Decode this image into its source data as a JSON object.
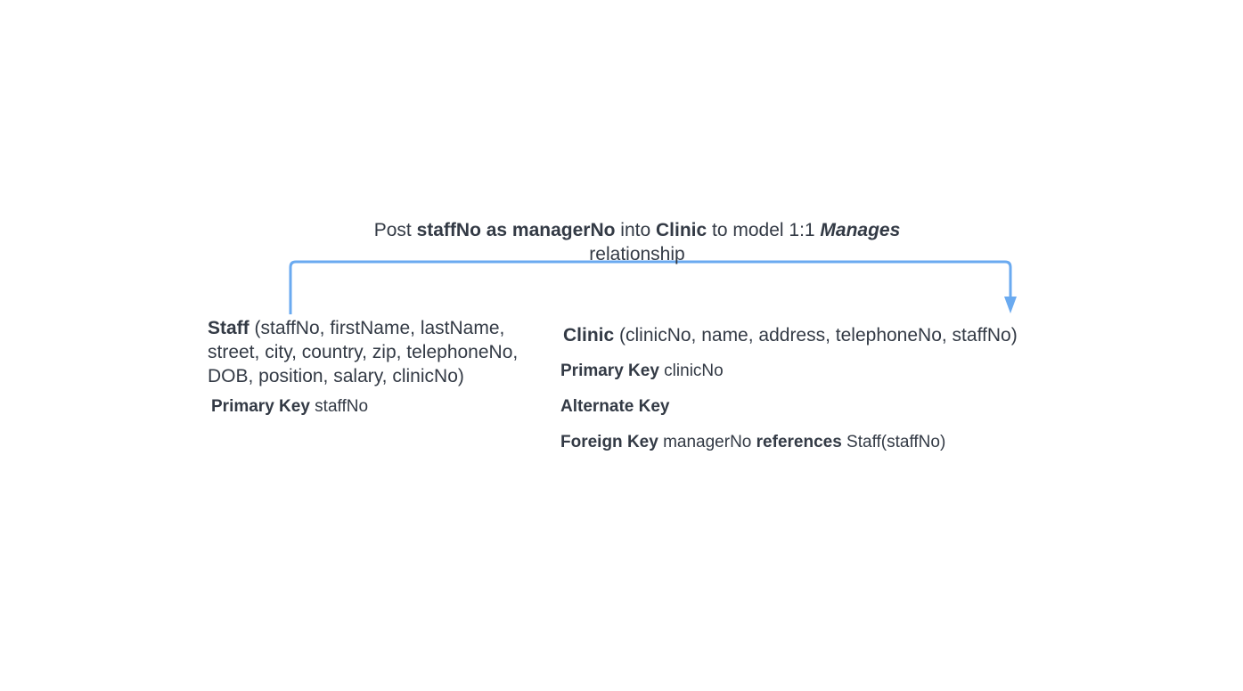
{
  "caption": {
    "part1": "Post ",
    "bold1": "staffNo as managerNo",
    "part2": " into ",
    "bold2": "Clinic",
    "part3": " to model 1:1 ",
    "italic_bold": "Manages",
    "part4": "relationship"
  },
  "staff": {
    "name": "Staff",
    "attributes": " (staffNo, firstName, lastName, street, city, country, zip, telephoneNo, DOB, position, salary, clinicNo)",
    "primary_key_label": "Primary Key",
    "primary_key_value": " staffNo"
  },
  "clinic": {
    "name": "Clinic",
    "attributes": " (clinicNo, name, address, telephoneNo, staffNo)",
    "primary_key_label": "Primary Key",
    "primary_key_value": " clinicNo",
    "alternate_key_label": "Alternate Key",
    "foreign_key_label": "Foreign Key",
    "foreign_key_value": " managerNo ",
    "references_label": "references",
    "references_value": " Staff(staffNo)"
  },
  "colors": {
    "connector": "#6aaaf0",
    "text": "#333a45"
  }
}
